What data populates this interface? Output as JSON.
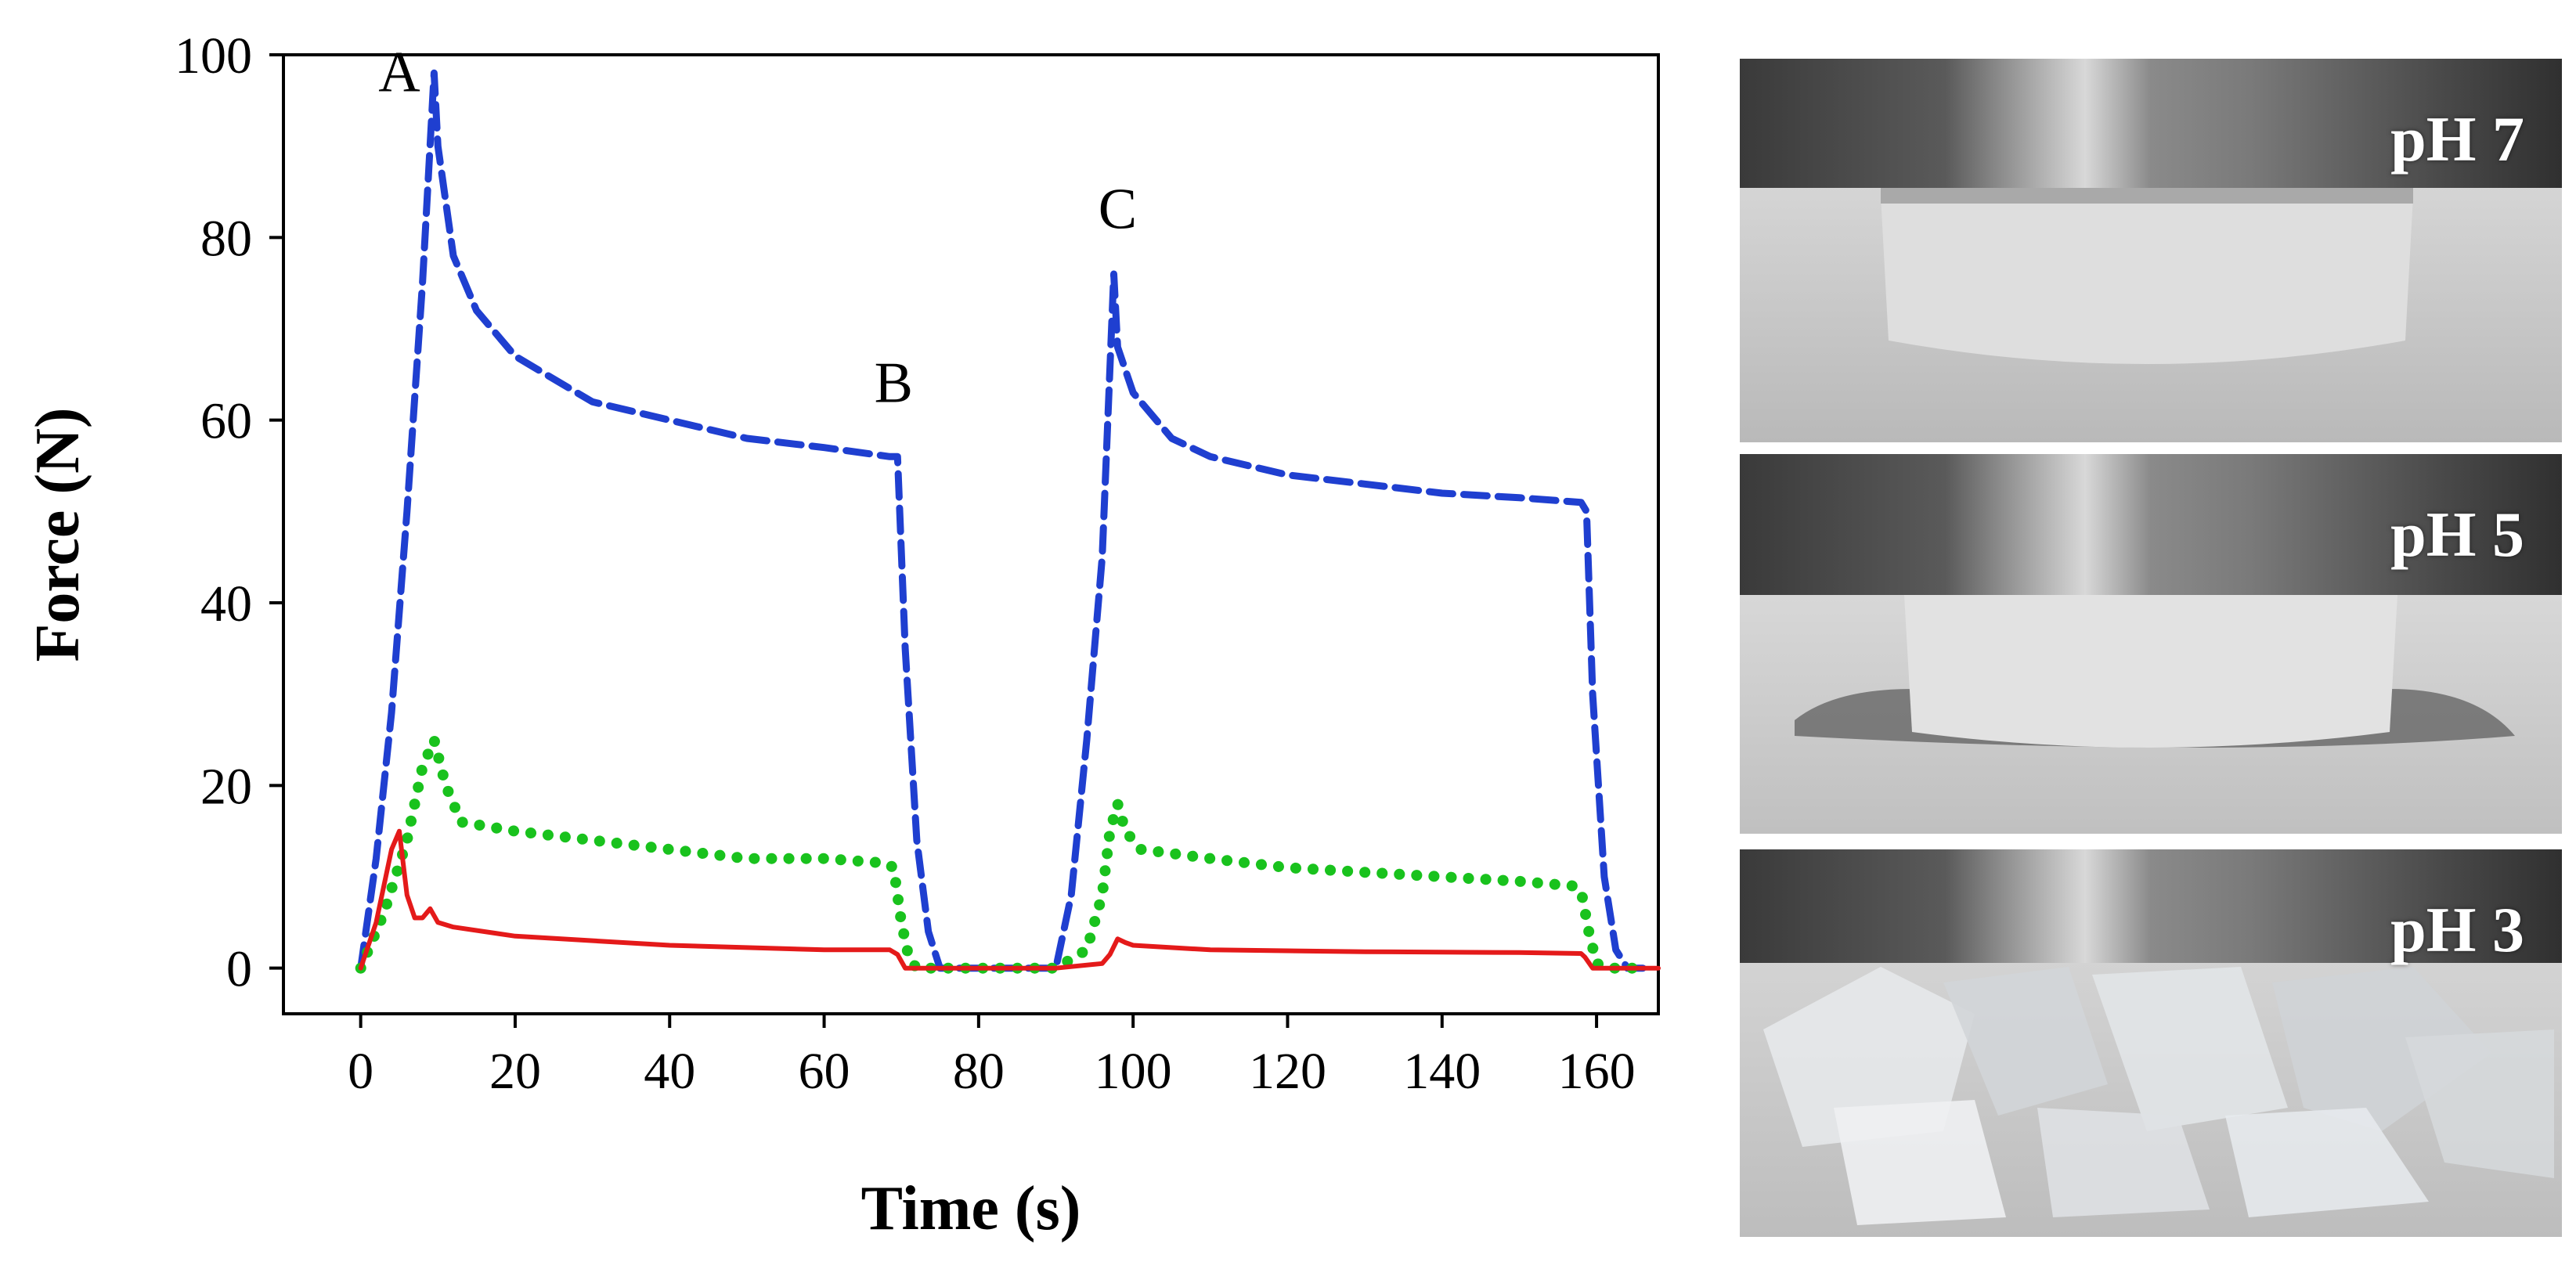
{
  "chart_data": {
    "type": "line",
    "title": "",
    "xlabel": "Time (s)",
    "ylabel": "Force (N)",
    "xlim": [
      -10,
      168
    ],
    "ylim": [
      -5,
      100
    ],
    "xticks": [
      0,
      20,
      40,
      60,
      80,
      100,
      120,
      140,
      160
    ],
    "yticks": [
      0,
      20,
      40,
      60,
      80,
      100
    ],
    "grid": false,
    "series": [
      {
        "style": "dashed",
        "color": "#1f3fd0",
        "x": [
          0,
          2,
          4,
          6,
          8,
          9.5,
          10,
          12,
          15,
          20,
          30,
          40,
          50,
          60,
          68.5,
          69.5,
          70.5,
          72,
          73.5,
          75,
          80,
          90,
          92,
          94,
          96,
          97.5,
          98,
          100,
          105,
          110,
          120,
          130,
          140,
          150,
          158,
          158.7,
          159.5,
          161,
          162.5,
          164,
          166
        ],
        "y": [
          0,
          12,
          28,
          50,
          75,
          98,
          90,
          78,
          72,
          67,
          62,
          60,
          58,
          57,
          56,
          56,
          35,
          14,
          4,
          0,
          0,
          0,
          8,
          25,
          45,
          76,
          68,
          63,
          58,
          56,
          54,
          53,
          52,
          51.5,
          51,
          50,
          30,
          10,
          2,
          0,
          0
        ]
      },
      {
        "style": "dotted",
        "color": "#19c21d",
        "x": [
          0,
          3,
          6,
          8,
          9.5,
          11,
          13,
          20,
          30,
          40,
          50,
          60,
          68,
          69,
          70,
          71,
          72,
          80,
          90,
          94,
          96,
          97,
          98,
          99,
          101,
          110,
          120,
          130,
          140,
          150,
          157,
          158,
          159,
          160,
          162,
          165
        ],
        "y": [
          0,
          6,
          14,
          22,
          25,
          20,
          16,
          15,
          14,
          13,
          12,
          12,
          11.5,
          11,
          5,
          1,
          0,
          0,
          0,
          2,
          8,
          15,
          18,
          15,
          13,
          12,
          11,
          10.5,
          10,
          9.5,
          9,
          8.5,
          4,
          0.5,
          0,
          0
        ]
      },
      {
        "style": "solid",
        "color": "#e41a1a",
        "x": [
          0,
          2,
          4,
          5,
          6,
          7,
          8,
          9,
          10,
          12,
          20,
          40,
          60,
          68.5,
          69.5,
          70.5,
          80,
          90,
          96,
          97,
          98,
          99,
          100,
          110,
          130,
          150,
          158,
          158.5,
          159.5,
          165,
          168
        ],
        "y": [
          0,
          5,
          13,
          15,
          8,
          5.5,
          5.5,
          6.5,
          5,
          4.5,
          3.5,
          2.5,
          2,
          2,
          1.5,
          0,
          0,
          0,
          0.5,
          1.5,
          3.2,
          2.8,
          2.5,
          2,
          1.8,
          1.7,
          1.6,
          1.2,
          0,
          0,
          0
        ]
      }
    ],
    "annotations": [
      {
        "text": "A",
        "x": 5,
        "y": 96
      },
      {
        "text": "B",
        "x": 69,
        "y": 62
      },
      {
        "text": "C",
        "x": 98,
        "y": 81
      }
    ]
  },
  "photos": [
    {
      "label": "pH 7"
    },
    {
      "label": "pH 5"
    },
    {
      "label": "pH 3"
    }
  ]
}
